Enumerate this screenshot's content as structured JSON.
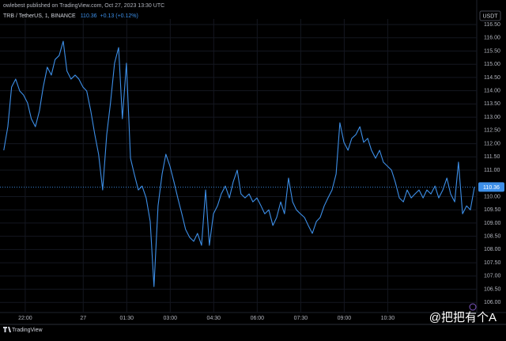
{
  "header": {
    "published": "owlebest published on TradingView.com, Oct 27, 2023 13:30 UTC",
    "currency": "USDT",
    "logo": "TradingView",
    "watermark": "@把把有个A"
  },
  "legend": {
    "symbol": "TRB / TetherUS, 1, BINANCE",
    "last": "110.36",
    "change": "+0.13 (+0.12%)"
  },
  "chart_data": {
    "type": "line",
    "x": [
      -0.74,
      -0.6,
      -0.47,
      -0.33,
      -0.19,
      -0.06,
      0.08,
      0.21,
      0.35,
      0.49,
      0.62,
      0.76,
      0.9,
      1.03,
      1.17,
      1.31,
      1.44,
      1.58,
      1.72,
      1.85,
      1.99,
      2.12,
      2.26,
      2.4,
      2.53,
      2.67,
      2.81,
      2.94,
      3.08,
      3.22,
      3.35,
      3.49,
      3.63,
      3.76,
      3.9,
      4.03,
      4.17,
      4.31,
      4.44,
      4.58,
      4.72,
      4.85,
      4.99,
      5.13,
      5.26,
      5.4,
      5.53,
      5.67,
      5.81,
      5.94,
      6.08,
      6.22,
      6.35,
      6.49,
      6.63,
      6.76,
      6.9,
      7.04,
      7.17,
      7.31,
      7.44,
      7.58,
      7.72,
      7.85,
      7.99,
      8.13,
      8.26,
      8.4,
      8.54,
      8.67,
      8.81,
      8.94,
      9.08,
      9.22,
      9.35,
      9.49,
      9.63,
      9.76,
      9.9,
      10.04,
      10.17,
      10.31,
      10.44,
      10.58,
      10.72,
      10.85,
      10.99,
      11.13,
      11.26,
      11.4,
      11.54,
      11.67,
      11.81,
      11.94,
      12.08,
      12.22,
      12.35,
      12.49,
      12.63,
      12.76,
      12.9,
      13.04,
      13.17,
      13.31,
      13.44,
      13.58,
      13.72,
      13.85,
      13.99,
      14.13,
      14.26,
      14.4,
      14.54,
      14.67,
      14.81,
      14.94,
      15.08,
      15.22,
      15.35,
      15.49
    ],
    "series": [
      {
        "color": "#3d8fe8",
        "values": [
          111.75,
          112.64,
          114.14,
          114.44,
          113.99,
          113.84,
          113.54,
          112.94,
          112.64,
          113.24,
          114.14,
          114.89,
          114.59,
          115.18,
          115.33,
          115.87,
          114.74,
          114.44,
          114.59,
          114.44,
          114.14,
          113.99,
          113.24,
          112.34,
          111.6,
          110.25,
          112.34,
          113.54,
          115.04,
          115.63,
          112.94,
          115.04,
          111.45,
          110.85,
          110.25,
          110.4,
          109.95,
          109.06,
          106.6,
          109.65,
          110.85,
          111.6,
          111.15,
          110.55,
          109.95,
          109.35,
          108.76,
          108.46,
          108.31,
          108.61,
          108.16,
          110.25,
          108.16,
          109.35,
          109.65,
          110.1,
          110.4,
          109.95,
          110.55,
          111.0,
          110.1,
          109.95,
          110.1,
          109.8,
          109.95,
          109.65,
          109.35,
          109.5,
          108.91,
          109.21,
          109.8,
          109.35,
          110.7,
          109.8,
          109.5,
          109.35,
          109.21,
          108.91,
          108.61,
          109.06,
          109.21,
          109.65,
          109.95,
          110.25,
          110.85,
          112.79,
          112.05,
          111.75,
          112.2,
          112.34,
          112.64,
          112.05,
          112.2,
          111.75,
          111.45,
          111.75,
          111.3,
          111.15,
          111.0,
          110.55,
          109.95,
          109.8,
          110.25,
          109.95,
          110.1,
          110.25,
          109.95,
          110.25,
          110.1,
          110.4,
          109.95,
          110.25,
          110.7,
          110.1,
          109.8,
          111.3,
          109.35,
          109.65,
          109.5,
          110.36
        ]
      }
    ],
    "xlim": [
      -0.87,
      15.57
    ],
    "xticks": [
      {
        "value": 0,
        "label": "22:00"
      },
      {
        "value": 2,
        "label": "27"
      },
      {
        "value": 3.5,
        "label": "01:30"
      },
      {
        "value": 5,
        "label": "03:00"
      },
      {
        "value": 6.5,
        "label": "04:30"
      },
      {
        "value": 8,
        "label": "06:00"
      },
      {
        "value": 9.5,
        "label": "07:30"
      },
      {
        "value": 11,
        "label": "09:00"
      },
      {
        "value": 12.5,
        "label": "10:30"
      }
    ],
    "ylim": [
      105.62,
      116.71
    ],
    "yticks": [
      {
        "value": 106,
        "label": "106.00"
      },
      {
        "value": 106.5,
        "label": "106.50"
      },
      {
        "value": 107,
        "label": "107.00"
      },
      {
        "value": 107.5,
        "label": "107.50"
      },
      {
        "value": 108,
        "label": "108.00"
      },
      {
        "value": 108.5,
        "label": "108.50"
      },
      {
        "value": 109,
        "label": "109.00"
      },
      {
        "value": 109.5,
        "label": "109.50"
      },
      {
        "value": 110,
        "label": "110.00"
      },
      {
        "value": 111,
        "label": "111.00"
      },
      {
        "value": 111.5,
        "label": "111.50"
      },
      {
        "value": 112,
        "label": "112.00"
      },
      {
        "value": 112.5,
        "label": "112.50"
      },
      {
        "value": 113,
        "label": "113.00"
      },
      {
        "value": 113.5,
        "label": "113.50"
      },
      {
        "value": 114,
        "label": "114.00"
      },
      {
        "value": 114.5,
        "label": "114.50"
      },
      {
        "value": 115,
        "label": "115.00"
      },
      {
        "value": 115.5,
        "label": "115.50"
      },
      {
        "value": 116,
        "label": "116.00"
      },
      {
        "value": 116.5,
        "label": "116.50"
      }
    ],
    "grid": true
  }
}
